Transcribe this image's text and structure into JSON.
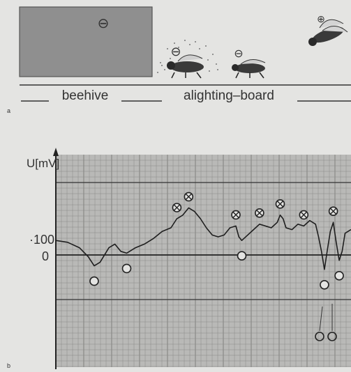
{
  "panel_a": {
    "letter": "a",
    "ground_labels": [
      "beehive",
      "alighting–board"
    ],
    "charge_signs": {
      "hive": "⊖",
      "bee_on_board": "⊖",
      "bee_walking": "⊖",
      "bee_flying": "⊕"
    }
  },
  "panel_b": {
    "letter": "b",
    "y_axis_label": "U[mV]",
    "y_tick_labels": [
      "100",
      "0"
    ],
    "positive_marker": "⊗",
    "negative_marker": "O"
  },
  "colors": {
    "background": "#e4e4e2",
    "hive": "#8f8f8f",
    "ink": "#2a2a2a",
    "grid": "#7a7a7a"
  },
  "chart_data": {
    "type": "line",
    "title": "",
    "xlabel": "",
    "ylabel": "U[mV]",
    "yticks": [
      100,
      0
    ],
    "ylim": [
      -520,
      380
    ],
    "grid": true,
    "series": [
      {
        "values": [
          [
            0,
            80
          ],
          [
            4,
            70
          ],
          [
            8,
            40
          ],
          [
            11,
            -10
          ],
          [
            13,
            -60
          ],
          [
            15,
            -40
          ],
          [
            18,
            40
          ],
          [
            20,
            60
          ],
          [
            22,
            20
          ],
          [
            24,
            10
          ],
          [
            27,
            40
          ],
          [
            30,
            60
          ],
          [
            33,
            90
          ],
          [
            36,
            130
          ],
          [
            39,
            150
          ],
          [
            41,
            200
          ],
          [
            43,
            220
          ],
          [
            45,
            260
          ],
          [
            47,
            240
          ],
          [
            49,
            200
          ],
          [
            51,
            150
          ],
          [
            53,
            110
          ],
          [
            55,
            100
          ],
          [
            57,
            110
          ],
          [
            59,
            150
          ],
          [
            61,
            160
          ],
          [
            62,
            100
          ],
          [
            63,
            80
          ],
          [
            65,
            110
          ],
          [
            67,
            140
          ],
          [
            69,
            170
          ],
          [
            71,
            160
          ],
          [
            73,
            150
          ],
          [
            75,
            180
          ],
          [
            76,
            220
          ],
          [
            77,
            200
          ],
          [
            78,
            150
          ],
          [
            80,
            140
          ],
          [
            82,
            170
          ],
          [
            84,
            160
          ],
          [
            86,
            190
          ],
          [
            88,
            170
          ],
          [
            89,
            100
          ],
          [
            90,
            20
          ],
          [
            91,
            -80
          ],
          [
            92,
            30
          ],
          [
            93,
            130
          ],
          [
            94,
            180
          ],
          [
            95,
            70
          ],
          [
            96,
            -30
          ],
          [
            97,
            20
          ],
          [
            98,
            120
          ],
          [
            100,
            140
          ]
        ]
      }
    ],
    "markers": [
      {
        "x": 13,
        "y": -60,
        "sign": "negative"
      },
      {
        "x": 24,
        "y": 10,
        "sign": "negative"
      },
      {
        "x": 41,
        "y": 200,
        "sign": "positive"
      },
      {
        "x": 45,
        "y": 260,
        "sign": "positive"
      },
      {
        "x": 61,
        "y": 160,
        "sign": "positive"
      },
      {
        "x": 63,
        "y": 80,
        "sign": "negative"
      },
      {
        "x": 69,
        "y": 170,
        "sign": "positive"
      },
      {
        "x": 76,
        "y": 220,
        "sign": "positive"
      },
      {
        "x": 84,
        "y": 160,
        "sign": "positive"
      },
      {
        "x": 91,
        "y": -80,
        "sign": "negative"
      },
      {
        "x": 94,
        "y": 180,
        "sign": "positive"
      },
      {
        "x": 96,
        "y": -30,
        "sign": "negative"
      }
    ]
  }
}
